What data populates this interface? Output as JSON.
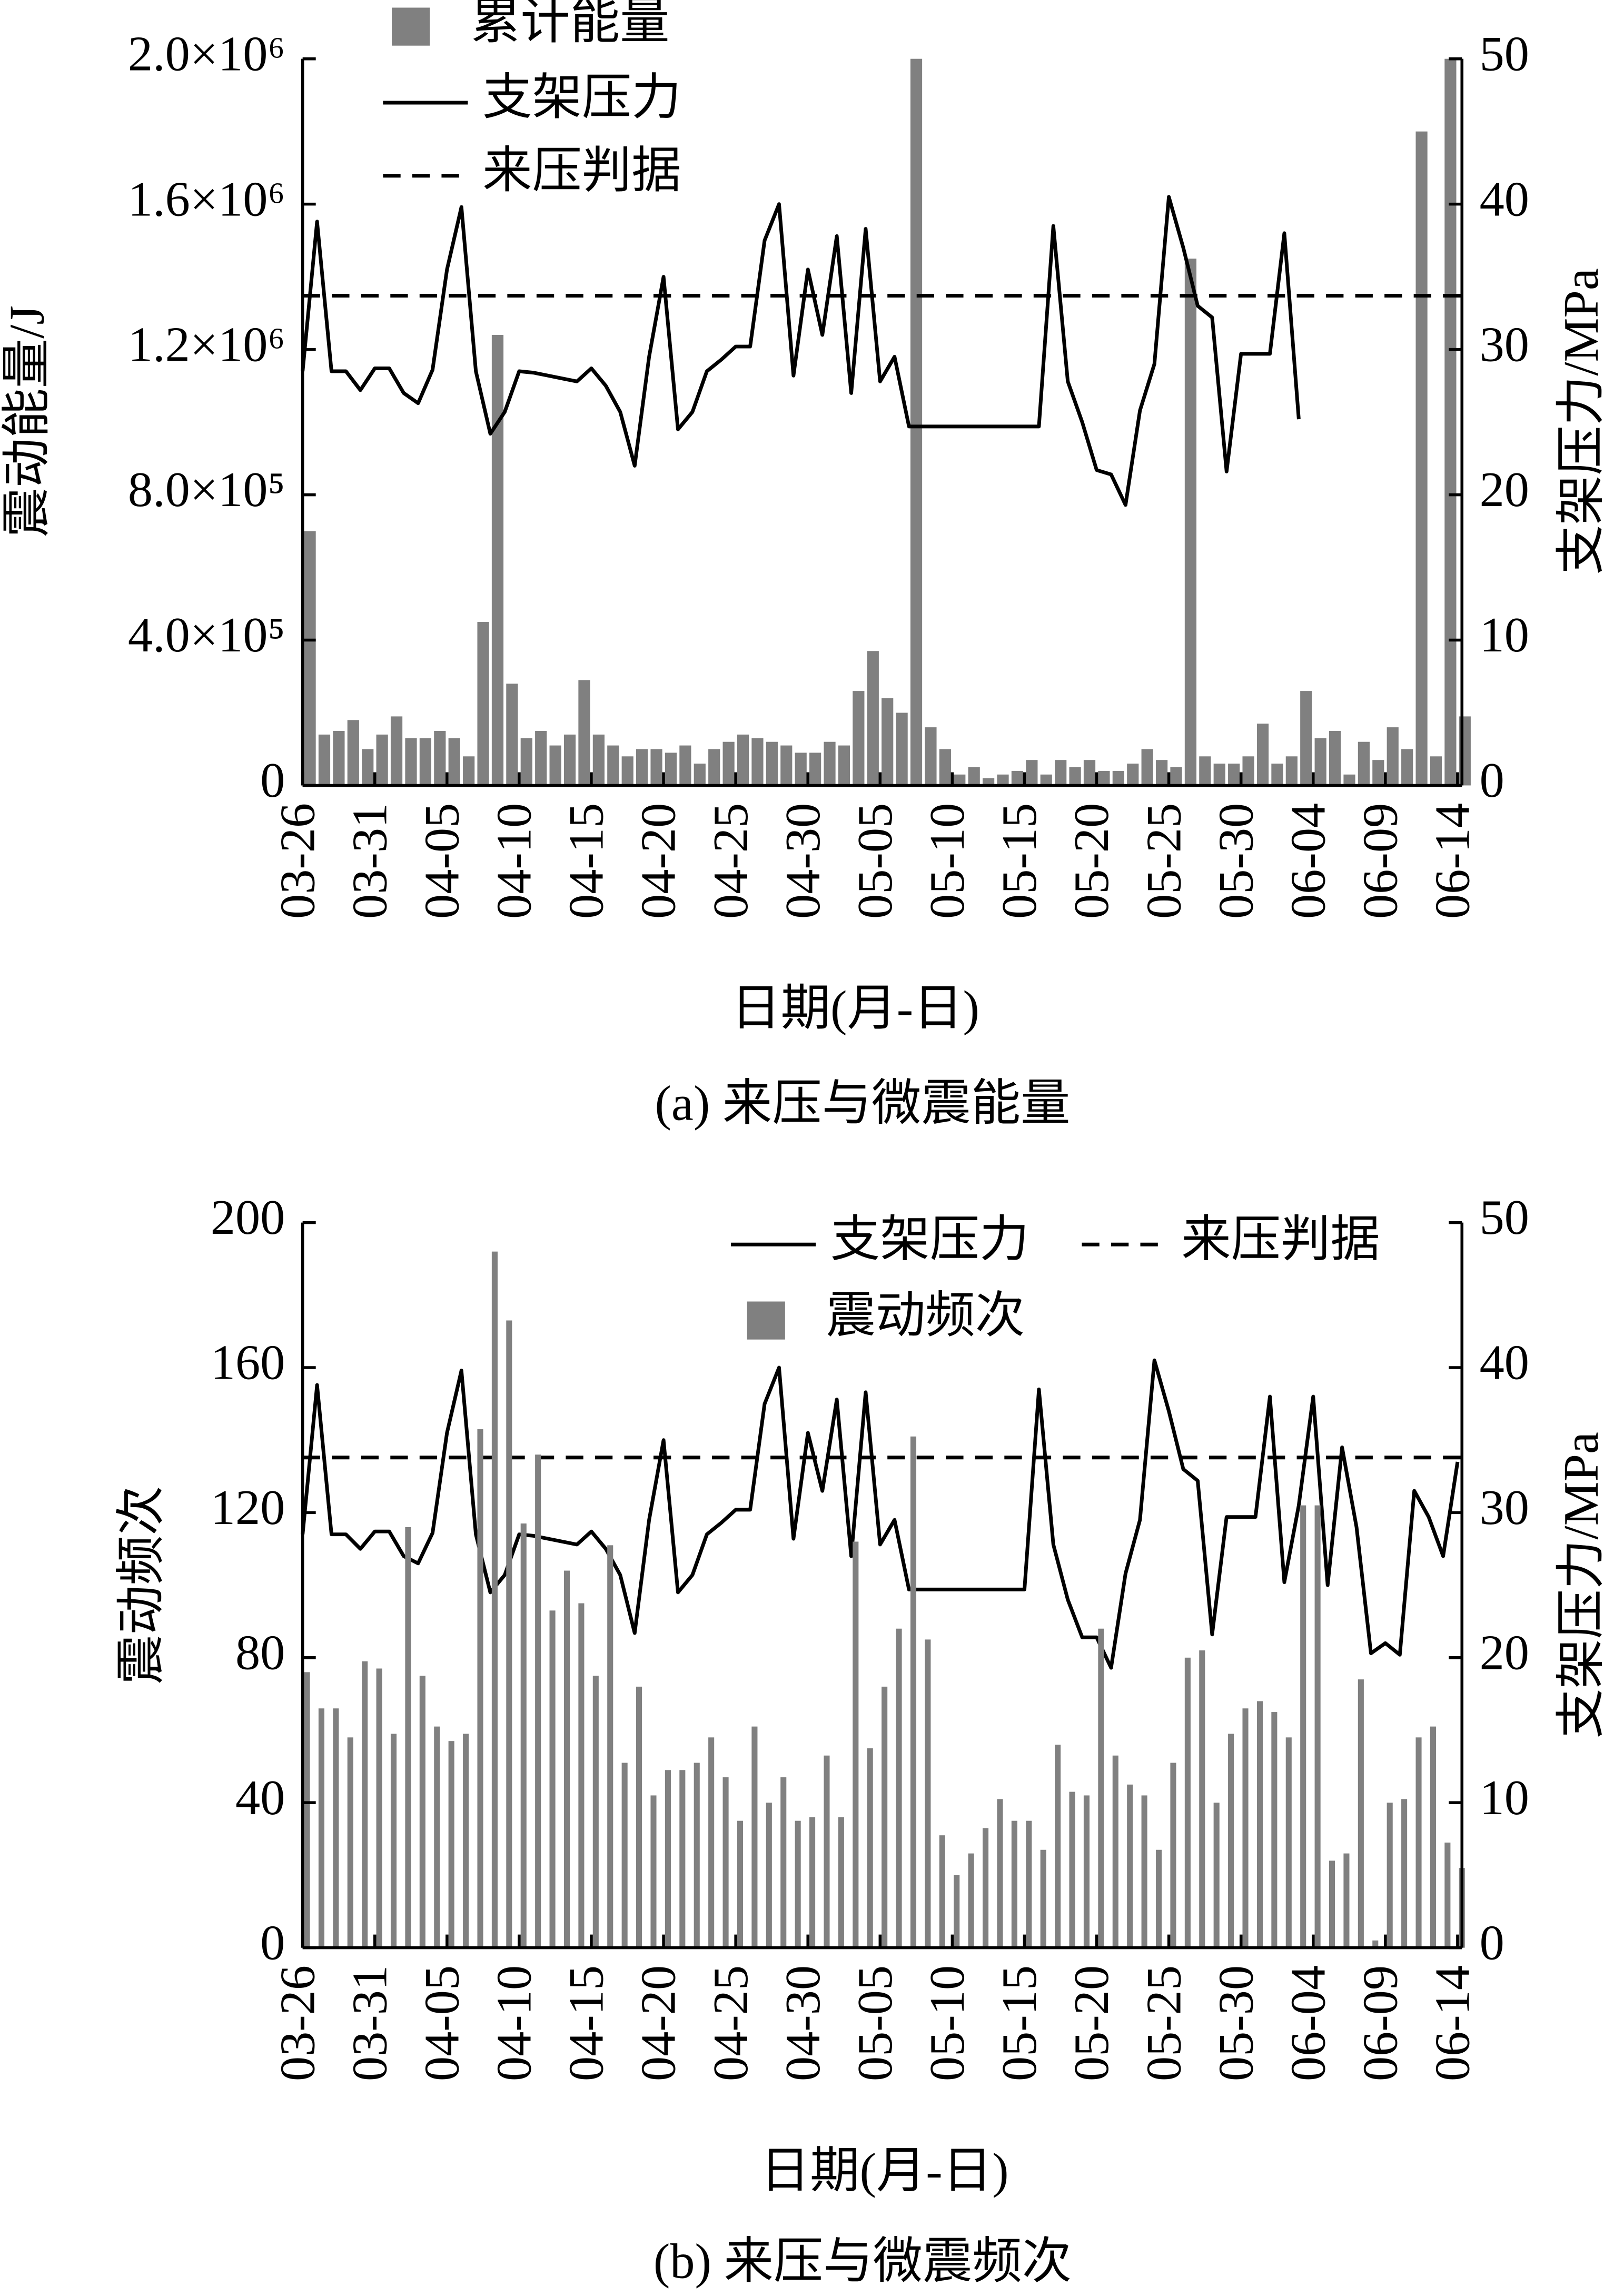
{
  "chart_data": [
    {
      "type": "bar",
      "caption": "(a)  来压与微震能量",
      "xlabel": "日期(月-日)",
      "ylabel": "震动能量/J",
      "y2label": "支架压力/MPa",
      "legend": "upper left",
      "categories": [
        "03-26",
        null,
        null,
        null,
        null,
        "03-31",
        null,
        null,
        null,
        null,
        "04-05",
        null,
        null,
        null,
        null,
        "04-10",
        null,
        null,
        null,
        null,
        "04-15",
        null,
        null,
        null,
        null,
        "04-20",
        null,
        null,
        null,
        null,
        "04-25",
        null,
        null,
        null,
        null,
        "04-30",
        null,
        null,
        null,
        null,
        "05-05",
        null,
        null,
        null,
        null,
        "05-10",
        null,
        null,
        null,
        null,
        "05-15",
        null,
        null,
        null,
        null,
        "05-20",
        null,
        null,
        null,
        null,
        "05-25",
        null,
        null,
        null,
        null,
        "05-30",
        null,
        null,
        null,
        null,
        "06-04",
        null,
        null,
        null,
        null,
        "06-09",
        null,
        null,
        null,
        null,
        "06-14"
      ],
      "ylim": [
        0,
        2000000
      ],
      "yticks": [
        0,
        {
          "value": 400000,
          "label": "4.0×10⁵"
        },
        {
          "value": 800000,
          "label": "8.0×10⁵"
        },
        {
          "value": 1200000,
          "label": "1.2×10⁶"
        },
        {
          "value": 1600000,
          "label": "1.6×10⁶"
        },
        {
          "value": 2000000,
          "label": "2.0×10⁶"
        }
      ],
      "y2lim": [
        0,
        50
      ],
      "y2ticks": [
        0,
        10,
        20,
        30,
        40,
        50
      ],
      "series": [
        {
          "name": "累计能量",
          "type": "bar",
          "color": "#808080",
          "values": [
            700000,
            140000,
            150000,
            180000,
            100000,
            140000,
            190000,
            130000,
            130000,
            150000,
            130000,
            80000,
            450000,
            1240000,
            280000,
            130000,
            150000,
            110000,
            140000,
            290000,
            140000,
            110000,
            80000,
            100000,
            100000,
            90000,
            110000,
            60000,
            100000,
            120000,
            140000,
            130000,
            120000,
            110000,
            90000,
            90000,
            120000,
            110000,
            260000,
            370000,
            240000,
            200000,
            2000000,
            160000,
            100000,
            30000,
            50000,
            20000,
            30000,
            40000,
            70000,
            30000,
            70000,
            50000,
            70000,
            40000,
            40000,
            60000,
            100000,
            70000,
            50000,
            1450000,
            80000,
            60000,
            60000,
            80000,
            170000,
            60000,
            80000,
            260000,
            130000,
            150000,
            30000,
            120000,
            70000,
            160000,
            100000,
            1800000,
            80000,
            2000000,
            190000
          ]
        },
        {
          "name": "支架压力",
          "type": "line",
          "axis": "y2",
          "color": "#000000",
          "values": [
            28.5,
            38.8,
            28.5,
            28.5,
            27.2,
            28.7,
            28.7,
            27,
            26.3,
            28.6,
            35.5,
            39.8,
            28.5,
            24.2,
            25.7,
            28.5,
            28.4,
            28.2,
            28,
            27.8,
            28.7,
            27.5,
            25.7,
            22,
            29.5,
            35,
            24.5,
            25.7,
            28.5,
            29.3,
            30.2,
            30.2,
            37.5,
            40,
            28.2,
            35.5,
            31,
            37.8,
            27,
            38.3,
            27.8,
            29.5,
            24.7,
            24.7,
            24.7,
            24.7,
            24.7,
            24.7,
            24.7,
            24.7,
            24.7,
            24.7,
            38.5,
            27.8,
            25,
            21.7,
            21.4,
            19.3,
            25.8,
            29,
            40.5,
            37,
            33,
            32.2,
            21.6,
            29.7,
            29.7,
            29.7,
            38,
            25.2,
            null,
            null,
            null,
            null,
            null,
            null,
            null,
            null,
            null,
            null,
            null
          ]
        },
        {
          "name": "来压判据",
          "type": "hline",
          "axis": "y2",
          "color": "#000000",
          "value": 33.7
        }
      ]
    },
    {
      "type": "bar",
      "caption": "(b)  来压与微震频次",
      "xlabel": "日期(月-日)",
      "ylabel": "震动频次",
      "y2label": "支架压力/MPa",
      "legend": "upper right",
      "categories": [
        "03-26",
        null,
        null,
        null,
        null,
        "03-31",
        null,
        null,
        null,
        null,
        "04-05",
        null,
        null,
        null,
        null,
        "04-10",
        null,
        null,
        null,
        null,
        "04-15",
        null,
        null,
        null,
        null,
        "04-20",
        null,
        null,
        null,
        null,
        "04-25",
        null,
        null,
        null,
        null,
        "04-30",
        null,
        null,
        null,
        null,
        "05-05",
        null,
        null,
        null,
        null,
        "05-10",
        null,
        null,
        null,
        null,
        "05-15",
        null,
        null,
        null,
        null,
        "05-20",
        null,
        null,
        null,
        null,
        "05-25",
        null,
        null,
        null,
        null,
        "05-30",
        null,
        null,
        null,
        null,
        "06-04",
        null,
        null,
        null,
        null,
        "06-09",
        null,
        null,
        null,
        null,
        "06-14"
      ],
      "ylim": [
        0,
        200
      ],
      "yticks": [
        0,
        40,
        80,
        120,
        160,
        200
      ],
      "y2lim": [
        0,
        50
      ],
      "y2ticks": [
        0,
        10,
        20,
        30,
        40,
        50
      ],
      "series": [
        {
          "name": "支架压力",
          "type": "line",
          "axis": "y2",
          "color": "#000000",
          "values": [
            28.5,
            38.8,
            28.5,
            28.5,
            27.5,
            28.7,
            28.7,
            27,
            26.5,
            28.6,
            35.5,
            39.8,
            28.5,
            24.5,
            25.7,
            28.5,
            28.4,
            28.2,
            28,
            27.8,
            28.7,
            27.5,
            25.7,
            21.7,
            29.5,
            35,
            24.5,
            25.7,
            28.5,
            29.3,
            30.2,
            30.2,
            37.5,
            40,
            28.2,
            35.5,
            31.5,
            37.8,
            27,
            38.3,
            27.8,
            29.5,
            24.7,
            24.7,
            24.7,
            24.7,
            24.7,
            24.7,
            24.7,
            24.7,
            24.7,
            38.5,
            27.8,
            24,
            21.4,
            21.4,
            19.3,
            25.8,
            29.5,
            40.5,
            37,
            33,
            32.2,
            21.6,
            29.7,
            29.7,
            29.7,
            38,
            25.2,
            30.5,
            38,
            25,
            34.5,
            29,
            20.3,
            21,
            20.2,
            31.5,
            29.7,
            27,
            33.5
          ]
        },
        {
          "name": "来压判据",
          "type": "hline",
          "axis": "y2",
          "color": "#000000",
          "value": 33.8
        },
        {
          "name": "震动频次",
          "type": "bar",
          "color": "#808080",
          "values": [
            76,
            66,
            66,
            58,
            79,
            77,
            59,
            116,
            75,
            61,
            57,
            59,
            143,
            192,
            173,
            117,
            136,
            93,
            104,
            95,
            75,
            111,
            51,
            72,
            42,
            49,
            49,
            51,
            58,
            47,
            35,
            61,
            40,
            47,
            35,
            36,
            53,
            36,
            112,
            55,
            72,
            88,
            141,
            85,
            31,
            20,
            26,
            33,
            41,
            35,
            35,
            27,
            56,
            43,
            42,
            88,
            53,
            45,
            42,
            27,
            51,
            80,
            82,
            40,
            59,
            66,
            68,
            65,
            58,
            122,
            122,
            24,
            26,
            74,
            2,
            40,
            41,
            58,
            61,
            29,
            22
          ]
        }
      ]
    }
  ]
}
